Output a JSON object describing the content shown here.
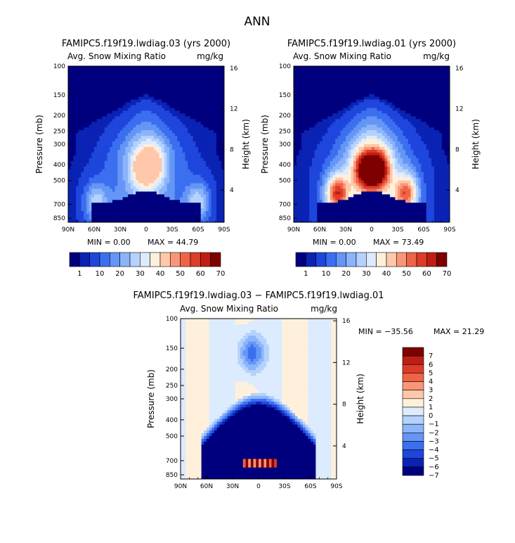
{
  "main_title": "ANN",
  "colors": {
    "abs_palette": [
      "#00007f",
      "#0a23b4",
      "#1e46dc",
      "#3c6ef0",
      "#6496f5",
      "#8cb4fa",
      "#b4d2fc",
      "#dcebfe",
      "#fff0dc",
      "#ffc8aa",
      "#fa9678",
      "#f06446",
      "#dc3c28",
      "#be1e14",
      "#7f0000"
    ],
    "diff_palette": [
      "#00007f",
      "#0a23b4",
      "#1e46dc",
      "#3c6ef0",
      "#6496f5",
      "#8cb4fa",
      "#b4d2fc",
      "#dcebfe",
      "#fff0dc",
      "#ffc8aa",
      "#fa9678",
      "#f06446",
      "#dc3c28",
      "#be1e14",
      "#7f0000"
    ]
  },
  "chart_data": [
    {
      "type": "heatmap",
      "title": "FAMIPC5.f19f19.lwdiag.03 (yrs 2000)",
      "subtitle_left": "Avg. Snow Mixing Ratio",
      "subtitle_right": "mg/kg",
      "xlabel": "",
      "ylabel": "Pressure (mb)",
      "ylabel_right": "Height (km)",
      "x_ticks": [
        "90N",
        "60N",
        "30N",
        "0",
        "30S",
        "60S",
        "90S"
      ],
      "y_ticks": [
        "100",
        "150",
        "200",
        "250",
        "300",
        "400",
        "500",
        "700",
        "850"
      ],
      "y_ticks_right": [
        "16",
        "12",
        "8",
        "4"
      ],
      "min_text": "MIN =    0.00",
      "max_text": "MAX =  44.79",
      "colorbar_labels": [
        "1",
        "10",
        "20",
        "30",
        "40",
        "50",
        "60",
        "70"
      ],
      "field": {
        "peak": 44.79,
        "blobs": [
          {
            "lat": -8,
            "p": 400,
            "v": 44
          },
          {
            "lat": 6,
            "p": 420,
            "v": 36
          },
          {
            "lat": -60,
            "p": 680,
            "v": 36
          },
          {
            "lat": 58,
            "p": 680,
            "v": 34
          }
        ]
      }
    },
    {
      "type": "heatmap",
      "title": "FAMIPC5.f19f19.lwdiag.01 (yrs 2000)",
      "subtitle_left": "Avg. Snow Mixing Ratio",
      "subtitle_right": "mg/kg",
      "xlabel": "",
      "ylabel": "Pressure (mb)",
      "ylabel_right": "Height (km)",
      "x_ticks": [
        "90N",
        "60N",
        "30N",
        "0",
        "30S",
        "60S",
        "90S"
      ],
      "y_ticks": [
        "100",
        "150",
        "200",
        "250",
        "300",
        "400",
        "500",
        "700",
        "850"
      ],
      "y_ticks_right": [
        "16",
        "12",
        "8",
        "4"
      ],
      "min_text": "MIN =    0.00",
      "max_text": "MAX =  73.49",
      "colorbar_labels": [
        "1",
        "10",
        "20",
        "30",
        "40",
        "50",
        "60",
        "70"
      ],
      "field": {
        "peak": 73.49,
        "blobs": [
          {
            "lat": -8,
            "p": 430,
            "v": 73
          },
          {
            "lat": 8,
            "p": 430,
            "v": 70
          },
          {
            "lat": 40,
            "p": 600,
            "v": 70
          },
          {
            "lat": -40,
            "p": 600,
            "v": 62
          }
        ]
      }
    },
    {
      "type": "heatmap",
      "title": "FAMIPC5.f19f19.lwdiag.03 − FAMIPC5.f19f19.lwdiag.01",
      "subtitle_left": "Avg. Snow Mixing Ratio",
      "subtitle_right": "mg/kg",
      "xlabel": "",
      "ylabel": "Pressure (mb)",
      "ylabel_right": "Height (km)",
      "x_ticks": [
        "90N",
        "60N",
        "30N",
        "0",
        "30S",
        "60S",
        "90S"
      ],
      "y_ticks": [
        "100",
        "150",
        "200",
        "250",
        "300",
        "400",
        "500",
        "700",
        "850"
      ],
      "y_ticks_right": [
        "16",
        "12",
        "8",
        "4"
      ],
      "min_text": "MIN = −35.56",
      "max_text": "MAX =  21.29",
      "colorbar_labels": [
        "7",
        "6",
        "5",
        "4",
        "3",
        "2",
        "1",
        "0",
        "−1",
        "−2",
        "−3",
        "−4",
        "−5",
        "−6",
        "−7"
      ],
      "field": {
        "min": -35.56,
        "max": 21.29
      }
    }
  ]
}
